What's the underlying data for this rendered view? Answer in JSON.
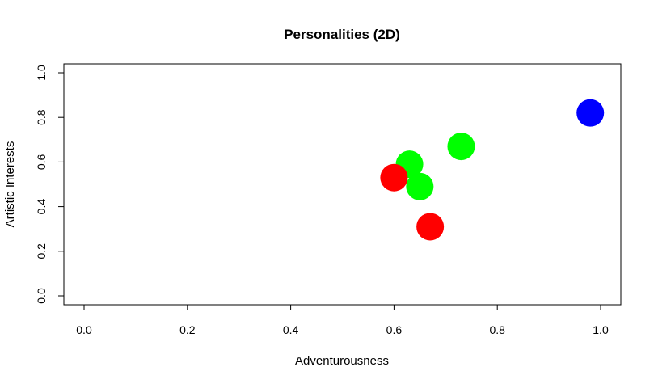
{
  "chart_data": {
    "type": "scatter",
    "title": "Personalities (2D)",
    "xlabel": "Adventurousness",
    "ylabel": "Artistic Interests",
    "xlim": [
      0.0,
      1.0
    ],
    "ylim": [
      0.0,
      1.0
    ],
    "x_ticks": [
      "0.0",
      "0.2",
      "0.4",
      "0.6",
      "0.8",
      "1.0"
    ],
    "y_ticks": [
      "0.0",
      "0.2",
      "0.4",
      "0.6",
      "0.8",
      "1.0"
    ],
    "grid": false,
    "points": [
      {
        "x": 0.98,
        "y": 0.82,
        "color": "#0000ff"
      },
      {
        "x": 0.73,
        "y": 0.67,
        "color": "#00ff00"
      },
      {
        "x": 0.63,
        "y": 0.59,
        "color": "#00ff00"
      },
      {
        "x": 0.65,
        "y": 0.49,
        "color": "#00ff00"
      },
      {
        "x": 0.6,
        "y": 0.53,
        "color": "#ff0000"
      },
      {
        "x": 0.67,
        "y": 0.31,
        "color": "#ff0000"
      }
    ]
  }
}
